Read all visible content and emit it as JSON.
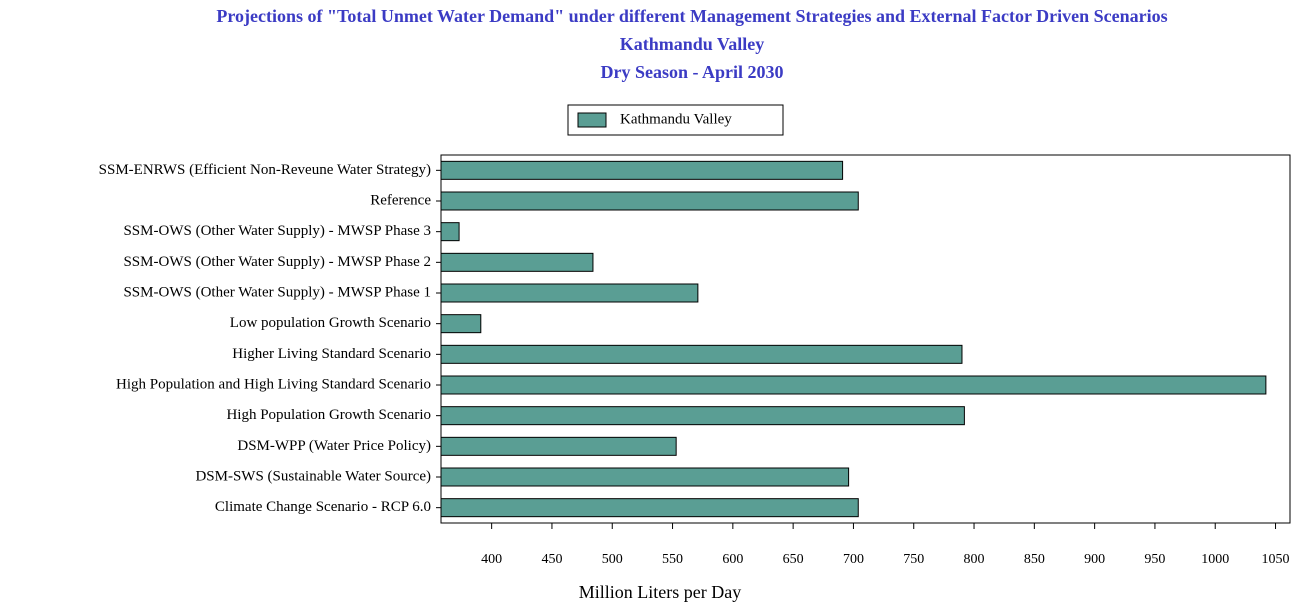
{
  "chart_data": {
    "type": "hbar",
    "title": "Projections of \"Total Unmet Water Demand\" under different Management Strategies and External Factor Driven Scenarios",
    "subtitle": [
      "Kathmandu Valley",
      "Dry Season - April 2030"
    ],
    "x_label": "Million Liters per Day",
    "categories": [
      "SSM-ENRWS (Efficient Non-Reveune Water Strategy)",
      "Reference",
      "SSM-OWS (Other Water Supply) - MWSP Phase 3",
      "SSM-OWS (Other Water Supply) - MWSP Phase 2",
      "SSM-OWS (Other Water Supply) - MWSP Phase 1",
      "Low population Growth Scenario",
      "Higher Living Standard Scenario",
      "High Population and High Living Standard Scenario",
      "High Population Growth Scenario",
      "DSM-WPP (Water Price Policy)",
      "DSM-SWS (Sustainable Water Source)",
      "Climate Change Scenario - RCP 6.0"
    ],
    "series": [
      {
        "name": "Kathmandu Valley",
        "color": "#5a9e94",
        "values": [
          691,
          704,
          373,
          484,
          571,
          391,
          790,
          1042,
          792,
          553,
          696,
          704
        ]
      }
    ],
    "xlim": [
      358,
      1062
    ],
    "xticks": [
      400,
      450,
      500,
      550,
      600,
      650,
      700,
      750,
      800,
      850,
      900,
      950,
      1000,
      1050
    ],
    "legend": "top"
  }
}
